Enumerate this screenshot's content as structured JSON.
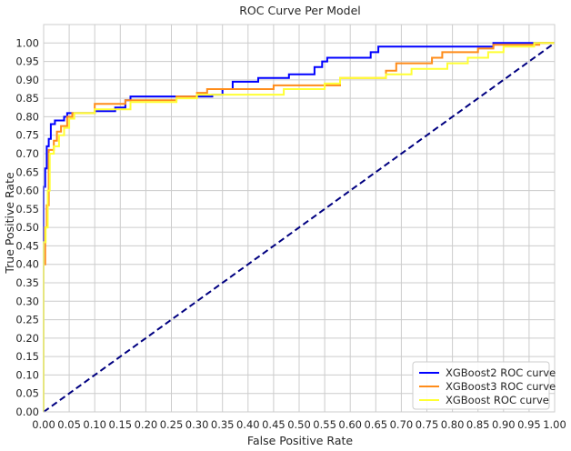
{
  "chart_data": {
    "type": "line",
    "title": "ROC Curve Per Model",
    "xlabel": "False Positive Rate",
    "ylabel": "True Positive Rate",
    "xlim": [
      0,
      1
    ],
    "ylim": [
      0,
      1.05
    ],
    "xticks": [
      "0.00",
      "0.05",
      "0.10",
      "0.15",
      "0.20",
      "0.25",
      "0.30",
      "0.35",
      "0.40",
      "0.45",
      "0.50",
      "0.55",
      "0.60",
      "0.65",
      "0.70",
      "0.75",
      "0.80",
      "0.85",
      "0.90",
      "0.95",
      "1.00"
    ],
    "yticks": [
      "0.00",
      "0.05",
      "0.10",
      "0.15",
      "0.20",
      "0.25",
      "0.30",
      "0.35",
      "0.40",
      "0.45",
      "0.50",
      "0.55",
      "0.60",
      "0.65",
      "0.70",
      "0.75",
      "0.80",
      "0.85",
      "0.90",
      "0.95",
      "1.00"
    ],
    "grid": true,
    "legend_position": "bottom-right",
    "series": [
      {
        "name": "XGBoost2 ROC curve",
        "color": "#0000ff",
        "points": [
          [
            0,
            0
          ],
          [
            0,
            0.61
          ],
          [
            0.003,
            0.61
          ],
          [
            0.003,
            0.66
          ],
          [
            0.006,
            0.66
          ],
          [
            0.006,
            0.72
          ],
          [
            0.01,
            0.72
          ],
          [
            0.01,
            0.74
          ],
          [
            0.014,
            0.74
          ],
          [
            0.014,
            0.78
          ],
          [
            0.022,
            0.78
          ],
          [
            0.022,
            0.79
          ],
          [
            0.04,
            0.79
          ],
          [
            0.04,
            0.8
          ],
          [
            0.046,
            0.8
          ],
          [
            0.046,
            0.81
          ],
          [
            0.1,
            0.81
          ],
          [
            0.1,
            0.815
          ],
          [
            0.14,
            0.815
          ],
          [
            0.14,
            0.825
          ],
          [
            0.16,
            0.825
          ],
          [
            0.16,
            0.845
          ],
          [
            0.17,
            0.845
          ],
          [
            0.17,
            0.855
          ],
          [
            0.33,
            0.855
          ],
          [
            0.33,
            0.86
          ],
          [
            0.35,
            0.86
          ],
          [
            0.35,
            0.875
          ],
          [
            0.37,
            0.875
          ],
          [
            0.37,
            0.895
          ],
          [
            0.42,
            0.895
          ],
          [
            0.42,
            0.905
          ],
          [
            0.48,
            0.905
          ],
          [
            0.48,
            0.915
          ],
          [
            0.53,
            0.915
          ],
          [
            0.53,
            0.935
          ],
          [
            0.545,
            0.935
          ],
          [
            0.545,
            0.95
          ],
          [
            0.555,
            0.95
          ],
          [
            0.555,
            0.96
          ],
          [
            0.64,
            0.96
          ],
          [
            0.64,
            0.975
          ],
          [
            0.655,
            0.975
          ],
          [
            0.655,
            0.99
          ],
          [
            0.88,
            0.99
          ],
          [
            0.88,
            1.0
          ],
          [
            1.0,
            1.0
          ]
        ]
      },
      {
        "name": "XGBoost3 ROC curve",
        "color": "#ff8c1a",
        "points": [
          [
            0,
            0
          ],
          [
            0,
            0.4
          ],
          [
            0.003,
            0.4
          ],
          [
            0.003,
            0.5
          ],
          [
            0.006,
            0.5
          ],
          [
            0.006,
            0.56
          ],
          [
            0.01,
            0.56
          ],
          [
            0.01,
            0.71
          ],
          [
            0.02,
            0.71
          ],
          [
            0.02,
            0.735
          ],
          [
            0.026,
            0.735
          ],
          [
            0.026,
            0.76
          ],
          [
            0.034,
            0.76
          ],
          [
            0.034,
            0.775
          ],
          [
            0.046,
            0.775
          ],
          [
            0.046,
            0.8
          ],
          [
            0.056,
            0.8
          ],
          [
            0.056,
            0.81
          ],
          [
            0.1,
            0.81
          ],
          [
            0.1,
            0.835
          ],
          [
            0.16,
            0.835
          ],
          [
            0.16,
            0.845
          ],
          [
            0.26,
            0.845
          ],
          [
            0.26,
            0.855
          ],
          [
            0.3,
            0.855
          ],
          [
            0.3,
            0.865
          ],
          [
            0.32,
            0.865
          ],
          [
            0.32,
            0.875
          ],
          [
            0.45,
            0.875
          ],
          [
            0.45,
            0.885
          ],
          [
            0.58,
            0.885
          ],
          [
            0.58,
            0.905
          ],
          [
            0.67,
            0.905
          ],
          [
            0.67,
            0.925
          ],
          [
            0.69,
            0.925
          ],
          [
            0.69,
            0.945
          ],
          [
            0.76,
            0.945
          ],
          [
            0.76,
            0.96
          ],
          [
            0.78,
            0.96
          ],
          [
            0.78,
            0.975
          ],
          [
            0.85,
            0.975
          ],
          [
            0.85,
            0.985
          ],
          [
            0.88,
            0.985
          ],
          [
            0.88,
            0.995
          ],
          [
            0.97,
            0.995
          ],
          [
            0.97,
            1.0
          ],
          [
            1.0,
            1.0
          ]
        ]
      },
      {
        "name": "XGBoost ROC curve",
        "color": "#ffff33",
        "points": [
          [
            0,
            0
          ],
          [
            0,
            0.46
          ],
          [
            0.004,
            0.46
          ],
          [
            0.004,
            0.5
          ],
          [
            0.008,
            0.5
          ],
          [
            0.008,
            0.6
          ],
          [
            0.012,
            0.6
          ],
          [
            0.012,
            0.7
          ],
          [
            0.02,
            0.7
          ],
          [
            0.02,
            0.72
          ],
          [
            0.03,
            0.72
          ],
          [
            0.03,
            0.75
          ],
          [
            0.04,
            0.75
          ],
          [
            0.04,
            0.77
          ],
          [
            0.05,
            0.77
          ],
          [
            0.05,
            0.795
          ],
          [
            0.06,
            0.795
          ],
          [
            0.06,
            0.81
          ],
          [
            0.1,
            0.81
          ],
          [
            0.1,
            0.82
          ],
          [
            0.17,
            0.82
          ],
          [
            0.17,
            0.84
          ],
          [
            0.26,
            0.84
          ],
          [
            0.26,
            0.85
          ],
          [
            0.3,
            0.85
          ],
          [
            0.3,
            0.86
          ],
          [
            0.47,
            0.86
          ],
          [
            0.47,
            0.875
          ],
          [
            0.55,
            0.875
          ],
          [
            0.55,
            0.89
          ],
          [
            0.58,
            0.89
          ],
          [
            0.58,
            0.905
          ],
          [
            0.67,
            0.905
          ],
          [
            0.67,
            0.915
          ],
          [
            0.72,
            0.915
          ],
          [
            0.72,
            0.93
          ],
          [
            0.79,
            0.93
          ],
          [
            0.79,
            0.945
          ],
          [
            0.83,
            0.945
          ],
          [
            0.83,
            0.96
          ],
          [
            0.87,
            0.96
          ],
          [
            0.87,
            0.975
          ],
          [
            0.9,
            0.975
          ],
          [
            0.9,
            0.99
          ],
          [
            0.96,
            0.99
          ],
          [
            0.96,
            1.0
          ],
          [
            1.0,
            1.0
          ]
        ]
      }
    ],
    "reference_line": {
      "points": [
        [
          0,
          0
        ],
        [
          1,
          1
        ]
      ],
      "color": "#000080",
      "style": "dashed"
    }
  }
}
